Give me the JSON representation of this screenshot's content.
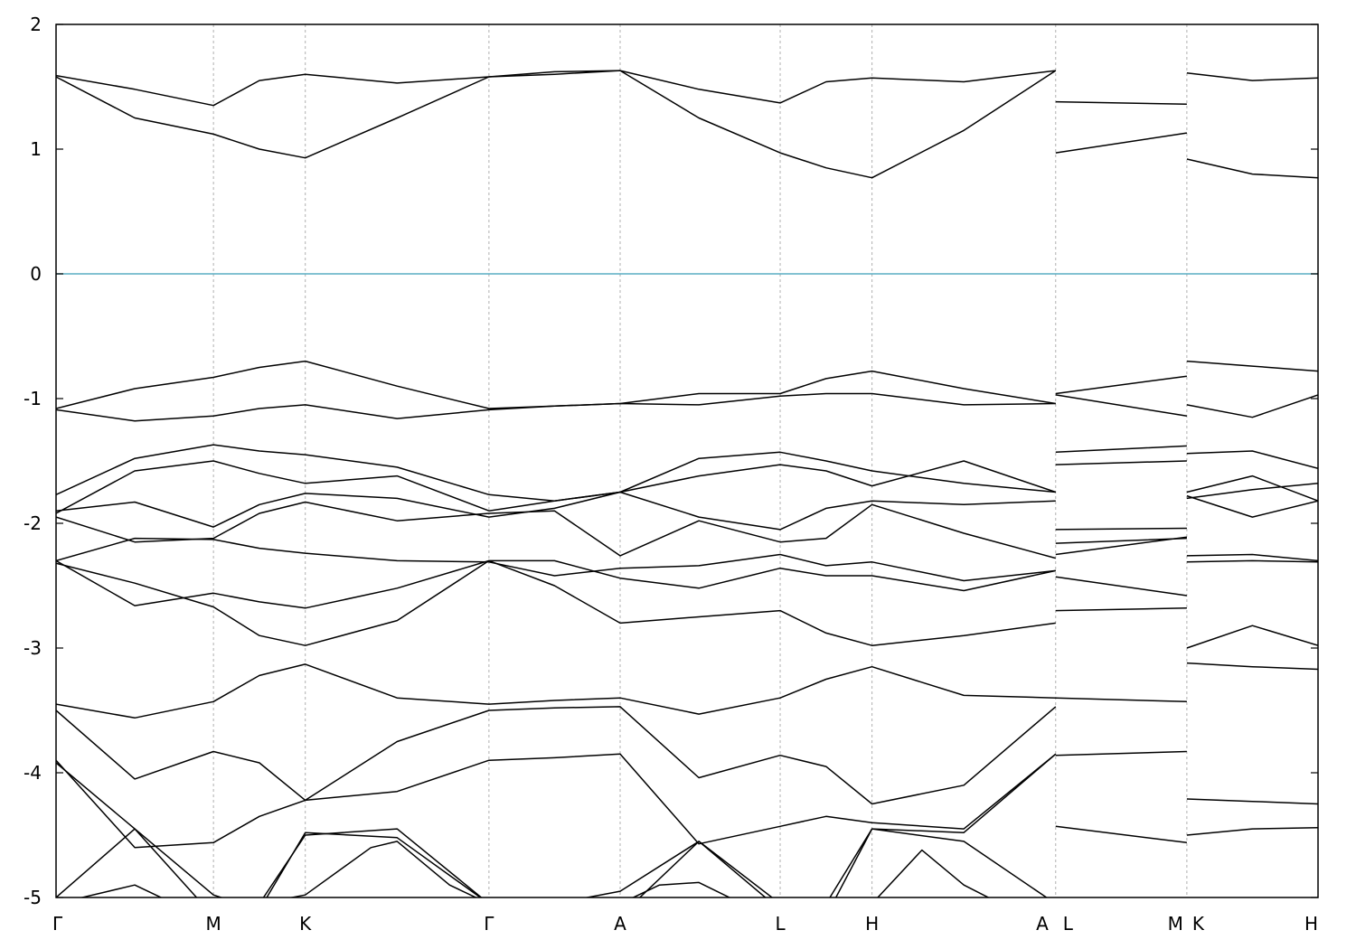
{
  "chart_data": {
    "type": "line",
    "title": "",
    "xlabel": "",
    "ylabel": "",
    "ylim": [
      -5,
      2
    ],
    "yticks": [
      2,
      1,
      0,
      -1,
      -2,
      -3,
      -4,
      -5
    ],
    "ytick_labels": [
      "2",
      "1",
      "0",
      "-1",
      "-2",
      "-3",
      "-4",
      "-5"
    ],
    "kpath_positions": [
      0,
      1.2,
      1.9,
      3.3,
      4.3,
      5.52,
      6.22,
      7.62,
      8.62,
      9.62
    ],
    "kpath_labels": [
      "Γ",
      "M",
      "K",
      "Γ",
      "A",
      "L",
      "H",
      "A",
      "L",
      "M",
      "K",
      "H"
    ],
    "vertical_lines_at": [
      1.2,
      1.9,
      3.3,
      4.3,
      5.52,
      6.22,
      7.62,
      8.62
    ],
    "fermi_level": 0,
    "fermi_color": "#5aaec4",
    "band_color": "#000000",
    "x_max": 9.62,
    "bands": [
      {
        "x": [
          0,
          0.6,
          1.2,
          1.55,
          1.9,
          2.6,
          3.3,
          3.8,
          4.3,
          4.9,
          5.52,
          5.87,
          6.22,
          6.92,
          7.62,
          7.62,
          8.62,
          8.62,
          9.12,
          9.62
        ],
        "y": [
          1.59,
          1.48,
          1.35,
          1.55,
          1.6,
          1.53,
          1.58,
          1.6,
          1.63,
          1.48,
          1.37,
          1.54,
          1.57,
          1.54,
          1.63,
          1.38,
          1.36,
          1.61,
          1.55,
          1.57
        ]
      },
      {
        "x": [
          0,
          0.6,
          1.2,
          1.55,
          1.9,
          2.6,
          3.3,
          3.8,
          4.3,
          4.9,
          5.52,
          5.87,
          6.22,
          6.92,
          7.62,
          7.62,
          8.62,
          8.62,
          9.12,
          9.62
        ],
        "y": [
          1.58,
          1.25,
          1.12,
          1.0,
          0.93,
          1.25,
          1.58,
          1.62,
          1.63,
          1.25,
          0.97,
          0.85,
          0.77,
          1.15,
          1.63,
          0.97,
          1.13,
          0.92,
          0.8,
          0.77
        ]
      },
      {
        "x": [
          0,
          0.6,
          1.2,
          1.55,
          1.9,
          2.6,
          3.3,
          3.8,
          4.3,
          4.9,
          5.52,
          5.87,
          6.22,
          6.92,
          7.62,
          7.62,
          8.62,
          8.62,
          9.12,
          9.62
        ],
        "y": [
          -1.08,
          -0.92,
          -0.83,
          -0.75,
          -0.7,
          -0.9,
          -1.08,
          -1.06,
          -1.04,
          -0.96,
          -0.96,
          -0.84,
          -0.78,
          -0.92,
          -1.04,
          -0.96,
          -0.82,
          -0.7,
          -0.74,
          -0.78
        ]
      },
      {
        "x": [
          0,
          0.6,
          1.2,
          1.55,
          1.9,
          2.6,
          3.3,
          3.8,
          4.3,
          4.9,
          5.52,
          5.87,
          6.22,
          6.92,
          7.62,
          7.62,
          8.62,
          8.62,
          9.12,
          9.62
        ],
        "y": [
          -1.09,
          -1.18,
          -1.14,
          -1.08,
          -1.05,
          -1.16,
          -1.09,
          -1.06,
          -1.04,
          -1.05,
          -0.98,
          -0.96,
          -0.96,
          -1.05,
          -1.04,
          -0.97,
          -1.14,
          -1.05,
          -1.15,
          -0.97
        ]
      },
      {
        "x": [
          0,
          0.6,
          1.2,
          1.55,
          1.9,
          2.6,
          3.3,
          3.8,
          4.3,
          4.9,
          5.52,
          5.87,
          6.22,
          6.92,
          7.62,
          7.62,
          8.62,
          8.62,
          9.12,
          9.62
        ],
        "y": [
          -1.77,
          -1.48,
          -1.37,
          -1.42,
          -1.45,
          -1.55,
          -1.77,
          -1.82,
          -1.75,
          -1.48,
          -1.43,
          -1.5,
          -1.58,
          -1.68,
          -1.75,
          -1.43,
          -1.38,
          -1.44,
          -1.42,
          -1.56
        ]
      },
      {
        "x": [
          0,
          0.6,
          1.2,
          1.55,
          1.9,
          2.6,
          3.3,
          3.8,
          4.3,
          4.9,
          5.52,
          5.87,
          6.22,
          6.92,
          7.62,
          7.62,
          8.62,
          8.62,
          9.12,
          9.62
        ],
        "y": [
          -1.92,
          -1.58,
          -1.5,
          -1.6,
          -1.68,
          -1.62,
          -1.9,
          -1.82,
          -1.75,
          -1.62,
          -1.53,
          -1.58,
          -1.7,
          -1.5,
          -1.75,
          -1.53,
          -1.5,
          -1.75,
          -1.62,
          -1.82
        ]
      },
      {
        "x": [
          0,
          0.6,
          1.2,
          1.55,
          1.9,
          2.6,
          3.3,
          3.8,
          4.3,
          4.9,
          5.52,
          5.87,
          6.22,
          6.92,
          7.62,
          7.62,
          8.62,
          8.62,
          9.12,
          9.62
        ],
        "y": [
          -1.9,
          -1.83,
          -2.03,
          -1.85,
          -1.76,
          -1.8,
          -1.95,
          -1.88,
          -1.75,
          -1.95,
          -2.05,
          -1.88,
          -1.82,
          -1.85,
          -1.82,
          -2.05,
          -2.04,
          -1.78,
          -1.95,
          -1.82
        ]
      },
      {
        "x": [
          0,
          0.6,
          1.2,
          1.55,
          1.9,
          2.6,
          3.3,
          3.8,
          4.3,
          4.9,
          5.52,
          5.87,
          6.22,
          6.92,
          7.62,
          7.62,
          8.62,
          8.62,
          9.12,
          9.62
        ],
        "y": [
          -1.95,
          -2.15,
          -2.12,
          -1.92,
          -1.83,
          -1.98,
          -1.92,
          -1.9,
          -2.26,
          -1.98,
          -2.15,
          -2.12,
          -1.85,
          -2.08,
          -2.28,
          -2.16,
          -2.12,
          -1.8,
          -1.73,
          -1.68
        ]
      },
      {
        "x": [
          0,
          0.6,
          1.2,
          1.55,
          1.9,
          2.6,
          3.3,
          3.8,
          4.3,
          4.9,
          5.52,
          5.87,
          6.22,
          6.92,
          7.62,
          7.62,
          8.62,
          8.62,
          9.12,
          9.62
        ],
        "y": [
          -2.3,
          -2.12,
          -2.13,
          -2.2,
          -2.24,
          -2.3,
          -2.31,
          -2.42,
          -2.36,
          -2.34,
          -2.25,
          -2.34,
          -2.31,
          -2.46,
          -2.38,
          -2.25,
          -2.11,
          -2.26,
          -2.25,
          -2.3
        ]
      },
      {
        "x": [
          0,
          0.6,
          1.2,
          1.55,
          1.9,
          2.6,
          3.3,
          3.8,
          4.3,
          4.9,
          5.52,
          5.87,
          6.22,
          6.92,
          7.62,
          7.62,
          8.62,
          8.62,
          9.12,
          9.62
        ],
        "y": [
          -2.32,
          -2.48,
          -2.67,
          -2.9,
          -2.98,
          -2.78,
          -2.3,
          -2.3,
          -2.44,
          -2.52,
          -2.36,
          -2.42,
          -2.42,
          -2.54,
          -2.38,
          -2.43,
          -2.58,
          -2.31,
          -2.3,
          -2.31
        ]
      },
      {
        "x": [
          0,
          0.6,
          1.2,
          1.55,
          1.9,
          2.6,
          3.3,
          3.8,
          4.3,
          4.9,
          5.52,
          5.87,
          6.22,
          6.92,
          7.62,
          7.62,
          8.62,
          8.62,
          9.12,
          9.62
        ],
        "y": [
          -2.3,
          -2.66,
          -2.56,
          -2.63,
          -2.68,
          -2.52,
          -2.3,
          -2.5,
          -2.8,
          -2.75,
          -2.7,
          -2.88,
          -2.98,
          -2.9,
          -2.8,
          -2.7,
          -2.68,
          -3.0,
          -2.82,
          -2.98
        ]
      },
      {
        "x": [
          0,
          0.6,
          1.2,
          1.55,
          1.9,
          2.6,
          3.3,
          3.8,
          4.3,
          4.9,
          5.52,
          5.87,
          6.22,
          6.92,
          7.62,
          7.62,
          8.62,
          8.62,
          9.12,
          9.62
        ],
        "y": [
          -3.45,
          -3.56,
          -3.43,
          -3.22,
          -3.13,
          -3.4,
          -3.45,
          -3.42,
          -3.4,
          -3.53,
          -3.4,
          -3.25,
          -3.15,
          -3.38,
          -3.4,
          -3.4,
          -3.43,
          -3.12,
          -3.15,
          -3.17
        ]
      },
      {
        "x": [
          0,
          0.6,
          1.2,
          1.55,
          1.9,
          2.6,
          3.3,
          3.8,
          4.3,
          4.9,
          5.52,
          5.87,
          6.22,
          6.92,
          7.62,
          7.62,
          8.62,
          8.62,
          9.12,
          9.62
        ],
        "y": [
          -3.5,
          -4.05,
          -3.83,
          -3.92,
          -4.22,
          -3.75,
          -3.5,
          -3.48,
          -3.47,
          -4.04,
          -3.86,
          -3.95,
          -4.25,
          -4.1,
          -3.47,
          -3.86,
          -3.83,
          -4.21,
          -4.23,
          -4.25
        ]
      },
      {
        "x": [
          0,
          0.6,
          1.2,
          1.55,
          1.9,
          2.6,
          3.3,
          3.8,
          4.3,
          4.9,
          5.52,
          5.87,
          6.22,
          6.92,
          7.62,
          7.62,
          8.62,
          8.62,
          9.12,
          9.62
        ],
        "y": [
          -3.9,
          -4.6,
          -4.56,
          -4.35,
          -4.22,
          -4.15,
          -3.9,
          -3.88,
          -3.85,
          -4.57,
          -4.43,
          -4.35,
          -4.4,
          -4.45,
          -3.85,
          -4.43,
          -4.56,
          -4.5,
          -4.45,
          -4.44
        ]
      },
      {
        "x": [
          0,
          0.6,
          1.2,
          1.55,
          1.9,
          2.6,
          3.3,
          3.8,
          4.3,
          4.9,
          5.52,
          5.87,
          6.22,
          6.92,
          7.62,
          7.62,
          8.62,
          8.62,
          9.12,
          9.62
        ],
        "y": [
          -3.92,
          -4.45,
          -5.15,
          -5.05,
          -4.5,
          -4.45,
          -5.05,
          -5.05,
          -4.95,
          -4.55,
          -5.1,
          -5.05,
          -4.45,
          -4.48,
          -3.85,
          -5.2,
          -5.2,
          -5.2,
          -5.2,
          -5.2
        ]
      },
      {
        "x": [
          0,
          0.6,
          1.2,
          1.55,
          1.9,
          2.6,
          3.3,
          3.8,
          4.3,
          4.9,
          5.52,
          5.87,
          6.22,
          6.92,
          7.62,
          7.62,
          8.62,
          8.62,
          9.12,
          9.62
        ],
        "y": [
          -5.0,
          -4.45,
          -4.98,
          -5.1,
          -4.48,
          -4.52,
          -5.05,
          -5.1,
          -5.15,
          -4.55,
          -5.05,
          -5.15,
          -4.45,
          -4.55,
          -5.05,
          -5.2,
          -5.2,
          -5.2,
          -5.2,
          -5.2
        ]
      },
      {
        "x": [
          0,
          0.4,
          0.6,
          0.9,
          1.2,
          1.55,
          1.9,
          2.4,
          2.6,
          3.0,
          3.3,
          3.8,
          4.3,
          4.6,
          4.9,
          5.52,
          5.87,
          6.22,
          6.6,
          6.92,
          7.2,
          7.62
        ],
        "y": [
          -5.05,
          -4.95,
          -4.9,
          -5.05,
          -5.2,
          -5.05,
          -4.98,
          -4.6,
          -4.55,
          -4.9,
          -5.05,
          -5.02,
          -5.05,
          -4.9,
          -4.88,
          -5.2,
          -5.2,
          -5.05,
          -4.62,
          -4.9,
          -5.05,
          -5.2
        ]
      }
    ]
  }
}
